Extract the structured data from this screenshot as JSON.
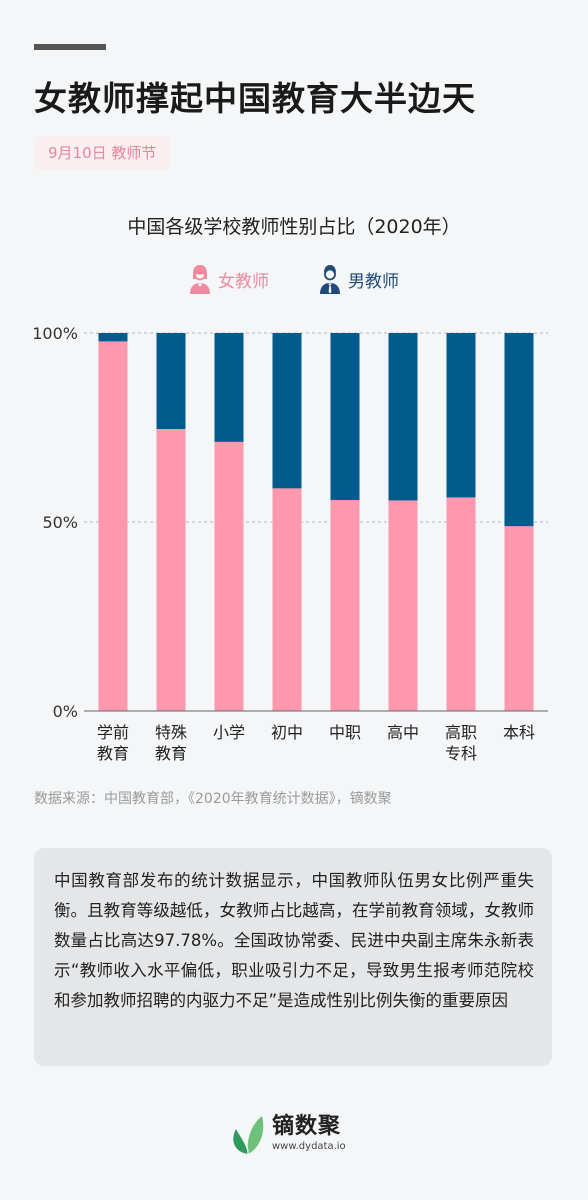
{
  "header": {
    "title": "女教师撑起中国教育大半边天",
    "date_tag": "9月10日 教师节"
  },
  "legend": {
    "female_label": "女教师",
    "male_label": "男教师"
  },
  "chart_data": {
    "type": "bar",
    "stacked": true,
    "title": "中国各级学校教师性别占比（2020年）",
    "categories": [
      [
        "学前",
        "教育"
      ],
      [
        "特殊",
        "教育"
      ],
      [
        "小学"
      ],
      [
        "初中"
      ],
      [
        "中职"
      ],
      [
        "高中"
      ],
      [
        "高职",
        "专科"
      ],
      [
        "本科"
      ]
    ],
    "series": [
      {
        "name": "女教师",
        "color": "#ff97ad",
        "values": [
          97.78,
          74.6,
          71.2,
          58.9,
          55.8,
          55.7,
          56.5,
          48.9
        ]
      },
      {
        "name": "男教师",
        "color": "#035a8d",
        "values": [
          2.22,
          25.4,
          28.8,
          41.1,
          44.2,
          44.3,
          43.5,
          51.1
        ]
      }
    ],
    "y_ticks": [
      "0%",
      "50%",
      "100%"
    ],
    "ylim": [
      0,
      100
    ],
    "grid": "dashed at 50% and 100%",
    "legend_position": "top-center"
  },
  "source": "数据来源：中国教育部，《2020年教育统计数据》，镝数聚",
  "note": "中国教育部发布的统计数据显示，中国教师队伍男女比例严重失衡。且教育等级越低，女教师占比越高，在学前教育领域，女教师数量占比高达97.78%。全国政协常委、民进中央副主席朱永新表示“教师收入水平偏低，职业吸引力不足，导致男生报考师范院校和参加教师招聘的内驱力不足”是造成性别比例失衡的重要原因",
  "logo": {
    "name": "镝数聚",
    "url": "www.dydata.io"
  }
}
